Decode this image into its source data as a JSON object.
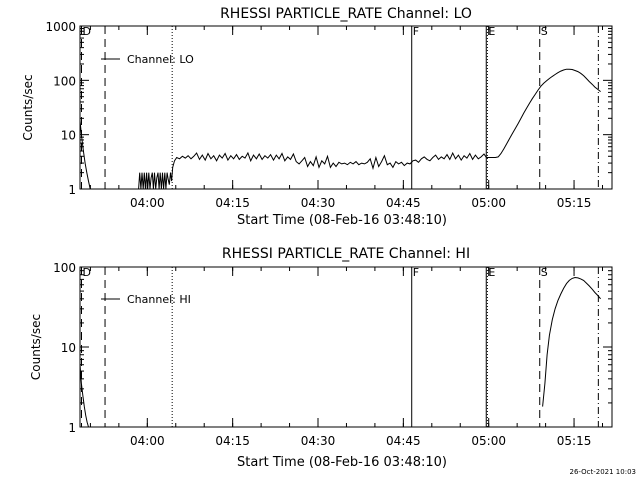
{
  "stamp": "26-Oct-2021 10:03",
  "chart_data": [
    {
      "type": "line",
      "title": "RHESSI PARTICLE_RATE Channel: LO",
      "xlabel": "Start Time (08-Feb-16 03:48:10)",
      "ylabel": "Counts/sec",
      "ylog": true,
      "ylim": [
        1,
        1000
      ],
      "xlim_minutes_after_start": [
        0,
        93.5
      ],
      "x_tick_labels": [
        "04:00",
        "04:15",
        "04:30",
        "04:45",
        "05:00",
        "05:15"
      ],
      "x_tick_minutes": [
        11.83,
        26.83,
        41.83,
        56.83,
        71.83,
        86.83
      ],
      "y_tick_labels": [
        "1",
        "10",
        "100",
        "1000"
      ],
      "y_tick_values": [
        1,
        10,
        100,
        1000
      ],
      "legend": {
        "label": "Channel: LO",
        "position": "top-left"
      },
      "markers": [
        {
          "label": "D",
          "minute": 0,
          "style": "dashed"
        },
        {
          "label": "",
          "minute": 4.4,
          "style": "dashed"
        },
        {
          "label": "",
          "minute": 16.2,
          "style": "dotted"
        },
        {
          "label": "F",
          "minute": 58.3,
          "style": "solid"
        },
        {
          "label": "",
          "minute": 71.4,
          "style": "solid"
        },
        {
          "label": "E",
          "minute": 71.6,
          "style": "dotted"
        },
        {
          "label": "S",
          "minute": 80.8,
          "style": "dashed"
        },
        {
          "label": "",
          "minute": 91.1,
          "style": "dashdot"
        }
      ],
      "series": [
        {
          "name": "Channel: LO",
          "x": [
            0,
            0.3,
            0.6,
            0.9,
            1.2,
            1.5,
            1.8
          ],
          "y": [
            18,
            9,
            5,
            3,
            2,
            1.4,
            1
          ]
        },
        {
          "name": "Channel: LO",
          "x": [
            10.3,
            10.5,
            10.7,
            10.9,
            11.1,
            11.3,
            11.5,
            11.7,
            11.9,
            12.1,
            12.3,
            12.5,
            12.7,
            12.9,
            13.1,
            13.3,
            13.5,
            13.7,
            13.9,
            14.1,
            14.3,
            14.5,
            14.7,
            14.9,
            15.1,
            15.3,
            15.5,
            15.7,
            15.9,
            16.1,
            16.3
          ],
          "y": [
            1,
            2,
            1,
            2,
            1,
            2,
            1,
            2,
            1,
            2,
            1,
            1.6,
            2,
            1,
            2,
            1,
            1.6,
            2,
            1,
            2,
            1,
            2,
            1,
            2,
            1,
            2,
            1.5,
            1.2,
            2,
            1.4,
            2.5
          ]
        },
        {
          "name": "Channel: LO",
          "x": [
            16.3,
            16.6,
            17,
            17.5,
            18,
            18.5,
            19,
            19.5,
            20,
            20.5,
            21,
            21.5,
            22,
            22.5,
            23,
            23.5,
            24,
            24.5,
            25,
            25.5,
            26,
            26.5,
            27,
            27.5,
            28,
            28.5,
            29,
            29.5,
            30,
            30.5,
            31,
            31.5,
            32,
            32.5,
            33,
            33.5,
            34,
            34.5,
            35,
            35.5,
            36,
            36.5,
            37,
            37.5,
            38,
            38.5,
            39,
            39.5,
            40,
            40.5,
            41,
            41.5,
            42,
            42.5,
            43,
            43.5,
            44,
            44.5,
            45,
            45.5,
            46,
            46.5,
            47,
            47.5,
            48,
            48.5,
            49,
            49.5,
            50,
            50.5,
            51,
            51.5,
            52,
            52.5,
            53,
            53.5,
            54,
            54.5,
            55,
            55.5,
            56,
            56.5,
            57,
            57.5,
            58,
            58.5,
            59,
            59.5,
            60,
            60.5,
            61,
            61.5,
            62,
            62.5,
            63,
            63.5,
            64,
            64.5,
            65,
            65.5,
            66,
            66.5,
            67,
            67.5,
            68,
            68.5,
            69,
            69.5,
            70,
            70.5,
            71,
            71.5
          ],
          "y": [
            2.5,
            3.3,
            3.8,
            3.6,
            4,
            3.7,
            4.1,
            3.6,
            4,
            4.6,
            3.5,
            4.2,
            3.4,
            4.5,
            3.6,
            4.1,
            3.3,
            4.2,
            3.7,
            4.5,
            3.4,
            4.1,
            3.6,
            4.3,
            3.5,
            4,
            3.7,
            4.6,
            3.3,
            4.2,
            3.6,
            4.4,
            3.5,
            4.1,
            3.7,
            4.3,
            3.4,
            4.2,
            3.6,
            4.5,
            3.3,
            3.9,
            3.5,
            4.4,
            3.2,
            2.9,
            3.3,
            3.8,
            2.6,
            3.2,
            2.7,
            3.9,
            2.5,
            3.3,
            2.9,
            4,
            2.5,
            3,
            2.6,
            3.1,
            2.9,
            3,
            2.8,
            3.1,
            2.9,
            3.2,
            2.8,
            3,
            2.9,
            3.1,
            3.6,
            2.4,
            3.8,
            2.6,
            3.2,
            4.1,
            2.8,
            3,
            2.5,
            3.2,
            2.9,
            3.1,
            2.7,
            3,
            2.9,
            3.3,
            3.4,
            3.1,
            3.6,
            3.9,
            3.5,
            3.3,
            3.8,
            4.2,
            3.5,
            3.9,
            3.6,
            4.3,
            3.5,
            4.6,
            3.6,
            4.2,
            3.4,
            4.1,
            3.7,
            4.5,
            3.5,
            4.2,
            3.6,
            3.9,
            4.4,
            3.7
          ]
        },
        {
          "name": "Channel: LO",
          "x": [
            71.5,
            72,
            72.5,
            73,
            73.5,
            74,
            74.5,
            75,
            75.5,
            76,
            76.5,
            77,
            77.5,
            78,
            78.5,
            79,
            79.5,
            80,
            80.5,
            81,
            81.5,
            82,
            82.5,
            83,
            83.5,
            84,
            84.5,
            85,
            85.5,
            86,
            86.5,
            87,
            87.5,
            88,
            88.5,
            89,
            89.5,
            90,
            90.5,
            91,
            91.5
          ],
          "y": [
            3.8,
            3.8,
            3.8,
            3.8,
            3.9,
            4.5,
            5.5,
            6.8,
            8.5,
            10.5,
            13,
            16,
            20,
            25,
            31,
            38,
            46,
            55,
            66,
            78,
            88,
            98,
            108,
            118,
            128,
            138,
            148,
            155,
            160,
            160,
            158,
            152,
            145,
            135,
            122,
            108,
            95,
            85,
            75,
            68,
            62
          ]
        }
      ]
    },
    {
      "type": "line",
      "title": "RHESSI PARTICLE_RATE Channel: HI",
      "xlabel": "Start Time (08-Feb-16 03:48:10)",
      "ylabel": "Counts/sec",
      "ylog": true,
      "ylim": [
        1,
        100
      ],
      "xlim_minutes_after_start": [
        0,
        93.5
      ],
      "x_tick_labels": [
        "04:00",
        "04:15",
        "04:30",
        "04:45",
        "05:00",
        "05:15"
      ],
      "x_tick_minutes": [
        11.83,
        26.83,
        41.83,
        56.83,
        71.83,
        86.83
      ],
      "y_tick_labels": [
        "1",
        "10",
        "100"
      ],
      "y_tick_values": [
        1,
        10,
        100
      ],
      "legend": {
        "label": "Channel: HI",
        "position": "top-left"
      },
      "markers": [
        {
          "label": "D",
          "minute": 0,
          "style": "dashed"
        },
        {
          "label": "",
          "minute": 4.4,
          "style": "dashed"
        },
        {
          "label": "",
          "minute": 16.2,
          "style": "dotted"
        },
        {
          "label": "F",
          "minute": 58.3,
          "style": "solid"
        },
        {
          "label": "",
          "minute": 71.4,
          "style": "solid"
        },
        {
          "label": "E",
          "minute": 71.6,
          "style": "dotted"
        },
        {
          "label": "S",
          "minute": 80.8,
          "style": "dashed"
        },
        {
          "label": "",
          "minute": 91.1,
          "style": "dashdot"
        }
      ],
      "series": [
        {
          "name": "Channel: HI",
          "x": [
            0,
            0.25,
            0.5,
            0.75,
            1.0,
            1.25,
            1.5
          ],
          "y": [
            6,
            3.5,
            2.5,
            1.8,
            1.4,
            1.15,
            1
          ]
        },
        {
          "name": "Channel: HI",
          "x": [
            81.3,
            81.7,
            82.1,
            82.5,
            83,
            83.5,
            84,
            84.5,
            85,
            85.5,
            86,
            86.5,
            87,
            87.5,
            88,
            88.5,
            89,
            89.5,
            90,
            90.5,
            91,
            91.5
          ],
          "y": [
            1.8,
            3.5,
            8,
            14,
            22,
            30,
            38,
            46,
            54,
            62,
            68,
            72,
            74,
            73,
            71,
            68,
            63,
            58,
            53,
            48,
            44,
            40
          ]
        }
      ]
    }
  ]
}
